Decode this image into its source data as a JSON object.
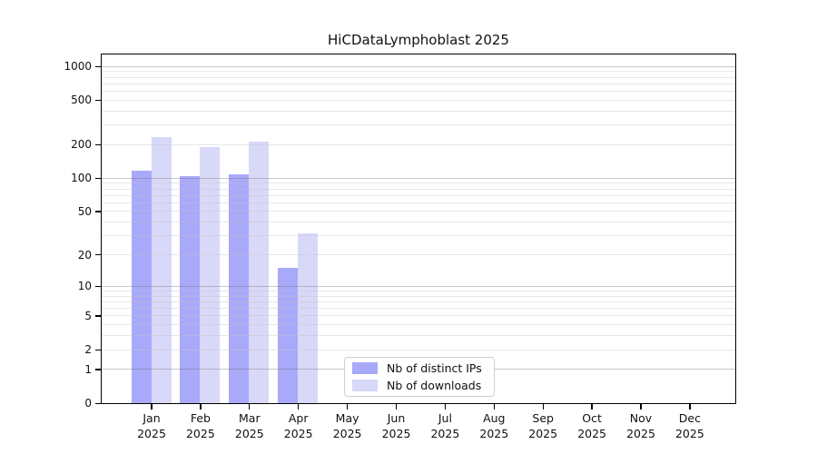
{
  "chart_data": {
    "type": "bar",
    "title": "HiCDataLymphoblast 2025",
    "months": [
      "Jan",
      "Feb",
      "Mar",
      "Apr",
      "May",
      "Jun",
      "Jul",
      "Aug",
      "Sep",
      "Oct",
      "Nov",
      "Dec"
    ],
    "year": "2025",
    "series": [
      {
        "name": "Nb of distinct IPs",
        "color": "#a9a9fa",
        "values": [
          115,
          103,
          107,
          15,
          0,
          0,
          0,
          0,
          0,
          0,
          0,
          0
        ]
      },
      {
        "name": "Nb of downloads",
        "color": "#d8d8f9",
        "values": [
          232,
          190,
          212,
          31,
          0,
          0,
          0,
          0,
          0,
          0,
          0,
          0
        ]
      }
    ],
    "y_ticks": [
      1000,
      500,
      200,
      100,
      50,
      20,
      10,
      5,
      2,
      1,
      0
    ],
    "y_scale": "log10(1+y)",
    "ylim": [
      0,
      1276
    ],
    "grid": {
      "major_at": [
        1,
        10,
        100,
        1000
      ],
      "minor_rule": "2-9 per decade",
      "orientation": "horizontal"
    },
    "legend": {
      "entries": [
        "Nb of distinct IPs",
        "Nb of downloads"
      ],
      "position": "inside-bottom-center"
    }
  },
  "colors": {
    "bar_distinct_ips": "#a9a9fa",
    "bar_downloads": "#d8d8f9",
    "axis": "#000000",
    "major_grid": "#c9c9c9",
    "minor_grid": "#ececec",
    "background": "#ffffff"
  }
}
